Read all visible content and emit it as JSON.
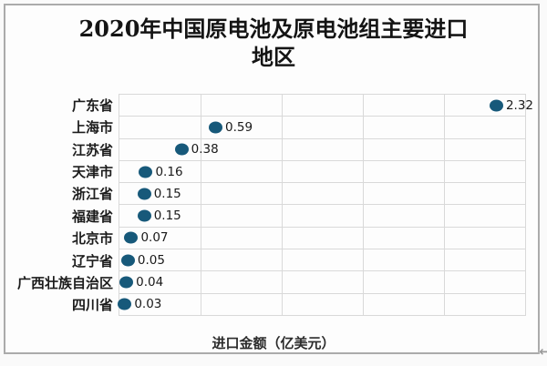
{
  "title": {
    "line1": "2020年中国原电池及原电池组主要进口",
    "line2": "地区"
  },
  "chart_data": {
    "type": "scatter",
    "orientation": "horizontal-categories",
    "categories": [
      "广东省",
      "上海市",
      "江苏省",
      "天津市",
      "浙江省",
      "福建省",
      "北京市",
      "辽宁省",
      "广西壮族自治区",
      "四川省"
    ],
    "values": [
      2.32,
      0.59,
      0.38,
      0.16,
      0.15,
      0.15,
      0.07,
      0.05,
      0.04,
      0.03
    ],
    "value_labels": [
      "2.32",
      "0.59",
      "0.38",
      "0.16",
      "0.15",
      "0.15",
      "0.07",
      "0.05",
      "0.04",
      "0.03"
    ],
    "title": "2020年中国原电池及原电池组主要进口地区",
    "xlabel": "进口金额（亿美元）",
    "ylabel": "",
    "xlim": [
      0,
      2.5
    ],
    "x_gridline_step": 0.5,
    "grid": true,
    "legend": "none",
    "data_labels_shown": true
  },
  "colors": {
    "marker": "#17597a",
    "gridline": "#d9d9d9",
    "frame_border": "#ababab",
    "cursor": "#9a9a9a"
  },
  "icons": {
    "cursor": "left-arrow-cursor"
  }
}
